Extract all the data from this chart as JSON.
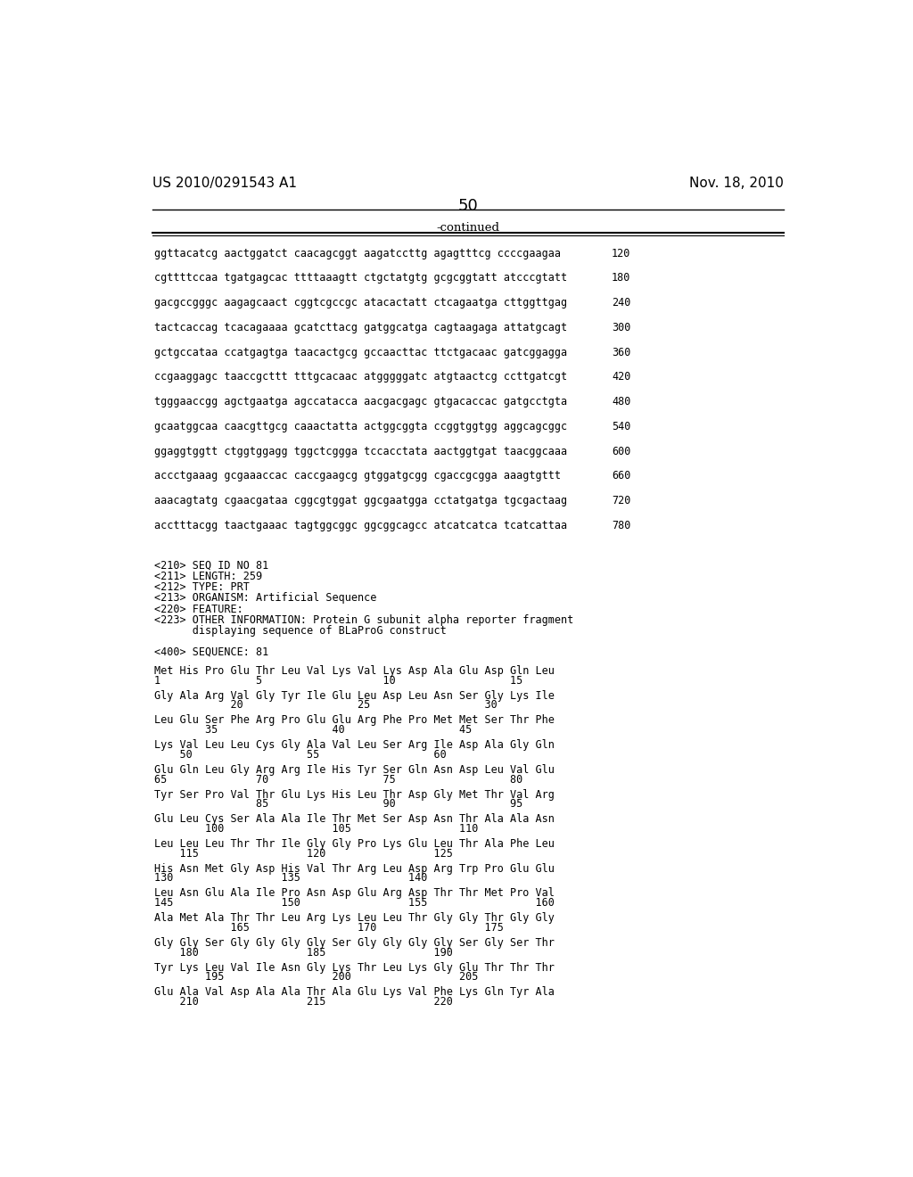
{
  "header_left": "US 2010/0291543 A1",
  "header_right": "Nov. 18, 2010",
  "page_number": "50",
  "continued_label": "-continued",
  "background_color": "#ffffff",
  "text_color": "#000000",
  "font_size_header": 11,
  "font_size_body": 8.5,
  "font_size_page": 13,
  "dna_lines": [
    [
      "ggttacatcg aactggatct caacagcggt aagatccttg agagtttcg ccccgaagaa",
      "120"
    ],
    [
      "cgttttccaa tgatgagcac ttttaaagtt ctgctatgtg gcgcggtatt atcccgtatt",
      "180"
    ],
    [
      "gacgccgggc aagagcaact cggtcgccgc atacactatt ctcagaatga cttggttgag",
      "240"
    ],
    [
      "tactcaccag tcacagaaaa gcatcttacg gatggcatga cagtaagaga attatgcagt",
      "300"
    ],
    [
      "gctgccataa ccatgagtga taacactgcg gccaacttac ttctgacaac gatcggagga",
      "360"
    ],
    [
      "ccgaaggagc taaccgcttt tttgcacaac atgggggatc atgtaactcg ccttgatcgt",
      "420"
    ],
    [
      "tgggaaccgg agctgaatga agccatacca aacgacgagc gtgacaccac gatgcctgta",
      "480"
    ],
    [
      "gcaatggcaa caacgttgcg caaactatta actggcggta ccggtggtgg aggcagcggc",
      "540"
    ],
    [
      "ggaggtggtt ctggtggagg tggctcggga tccacctata aactggtgat taacggcaaa",
      "600"
    ],
    [
      "accctgaaag gcgaaaccac caccgaagcg gtggatgcgg cgaccgcgga aaagtgttt",
      "660"
    ],
    [
      "aaacagtatg cgaacgataa cggcgtggat ggcgaatgga cctatgatga tgcgactaag",
      "720"
    ],
    [
      "acctttacgg taactgaaac tagtggcggc ggcggcagcc atcatcatca tcatcattaa",
      "780"
    ]
  ],
  "seq_info_lines": [
    "<210> SEQ ID NO 81",
    "<211> LENGTH: 259",
    "<212> TYPE: PRT",
    "<213> ORGANISM: Artificial Sequence",
    "<220> FEATURE:",
    "<223> OTHER INFORMATION: Protein G subunit alpha reporter fragment",
    "      displaying sequence of BLaProG construct"
  ],
  "seq_label": "<400> SEQUENCE: 81",
  "protein_blocks": [
    {
      "sequence": "Met His Pro Glu Thr Leu Val Lys Val Lys Asp Ala Glu Asp Gln Leu",
      "numbers": "1               5                   10                  15"
    },
    {
      "sequence": "Gly Ala Arg Val Gly Tyr Ile Glu Leu Asp Leu Asn Ser Gly Lys Ile",
      "numbers": "            20                  25                  30"
    },
    {
      "sequence": "Leu Glu Ser Phe Arg Pro Glu Glu Arg Phe Pro Met Met Ser Thr Phe",
      "numbers": "        35                  40                  45"
    },
    {
      "sequence": "Lys Val Leu Leu Cys Gly Ala Val Leu Ser Arg Ile Asp Ala Gly Gln",
      "numbers": "    50                  55                  60"
    },
    {
      "sequence": "Glu Gln Leu Gly Arg Arg Ile His Tyr Ser Gln Asn Asp Leu Val Glu",
      "numbers": "65              70                  75                  80"
    },
    {
      "sequence": "Tyr Ser Pro Val Thr Glu Lys His Leu Thr Asp Gly Met Thr Val Arg",
      "numbers": "                85                  90                  95"
    },
    {
      "sequence": "Glu Leu Cys Ser Ala Ala Ile Thr Met Ser Asp Asn Thr Ala Ala Asn",
      "numbers": "        100                 105                 110"
    },
    {
      "sequence": "Leu Leu Leu Thr Thr Ile Gly Gly Pro Lys Glu Leu Thr Ala Phe Leu",
      "numbers": "    115                 120                 125"
    },
    {
      "sequence": "His Asn Met Gly Asp His Val Thr Arg Leu Asp Arg Trp Pro Glu Glu",
      "numbers": "130                 135                 140"
    },
    {
      "sequence": "Leu Asn Glu Ala Ile Pro Asn Asp Glu Arg Asp Thr Thr Met Pro Val",
      "numbers": "145                 150                 155                 160"
    },
    {
      "sequence": "Ala Met Ala Thr Thr Leu Arg Lys Leu Leu Thr Gly Gly Thr Gly Gly",
      "numbers": "            165                 170                 175"
    },
    {
      "sequence": "Gly Gly Ser Gly Gly Gly Gly Ser Gly Gly Gly Gly Ser Gly Ser Thr",
      "numbers": "    180                 185                 190"
    },
    {
      "sequence": "Tyr Lys Leu Val Ile Asn Gly Lys Thr Leu Lys Gly Glu Thr Thr Thr",
      "numbers": "        195                 200                 205"
    },
    {
      "sequence": "Glu Ala Val Asp Ala Ala Thr Ala Glu Lys Val Phe Lys Gln Tyr Ala",
      "numbers": "    210                 215                 220"
    }
  ]
}
